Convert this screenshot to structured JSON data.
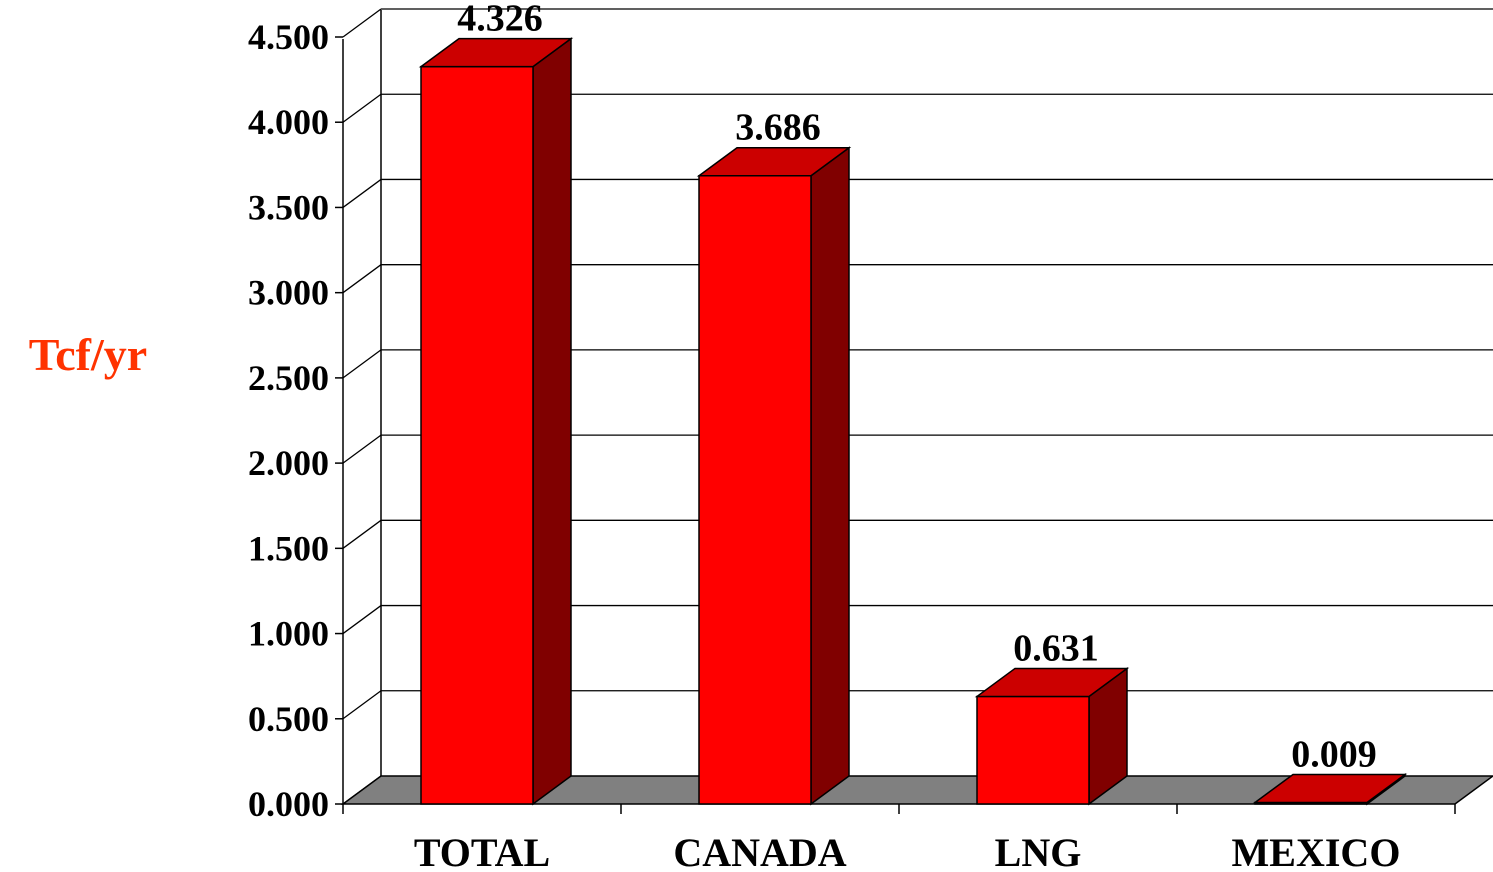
{
  "chart_data": {
    "type": "bar",
    "style": "3d",
    "categories": [
      "TOTAL",
      "CANADA",
      "LNG",
      "MEXICO"
    ],
    "values": [
      4.326,
      3.686,
      0.631,
      0.009
    ],
    "value_labels": [
      "4.326",
      "3.686",
      "0.631",
      "0.009"
    ],
    "title": "",
    "xlabel": "",
    "ylabel": "Tcf/yr",
    "ylim": [
      0,
      4.5
    ],
    "yticks": [
      0,
      0.5,
      1.0,
      1.5,
      2.0,
      2.5,
      3.0,
      3.5,
      4.0,
      4.5
    ],
    "ytick_labels": [
      "0.000",
      "0.500",
      "1.000",
      "1.500",
      "2.000",
      "2.500",
      "3.000",
      "3.500",
      "4.000",
      "4.500"
    ],
    "grid": true,
    "legend": "none",
    "colors": {
      "bar_front": "#ff0000",
      "bar_top": "#cc0000",
      "bar_side": "#800000",
      "floor": "#808080",
      "ylabel": "#ff3300"
    }
  }
}
